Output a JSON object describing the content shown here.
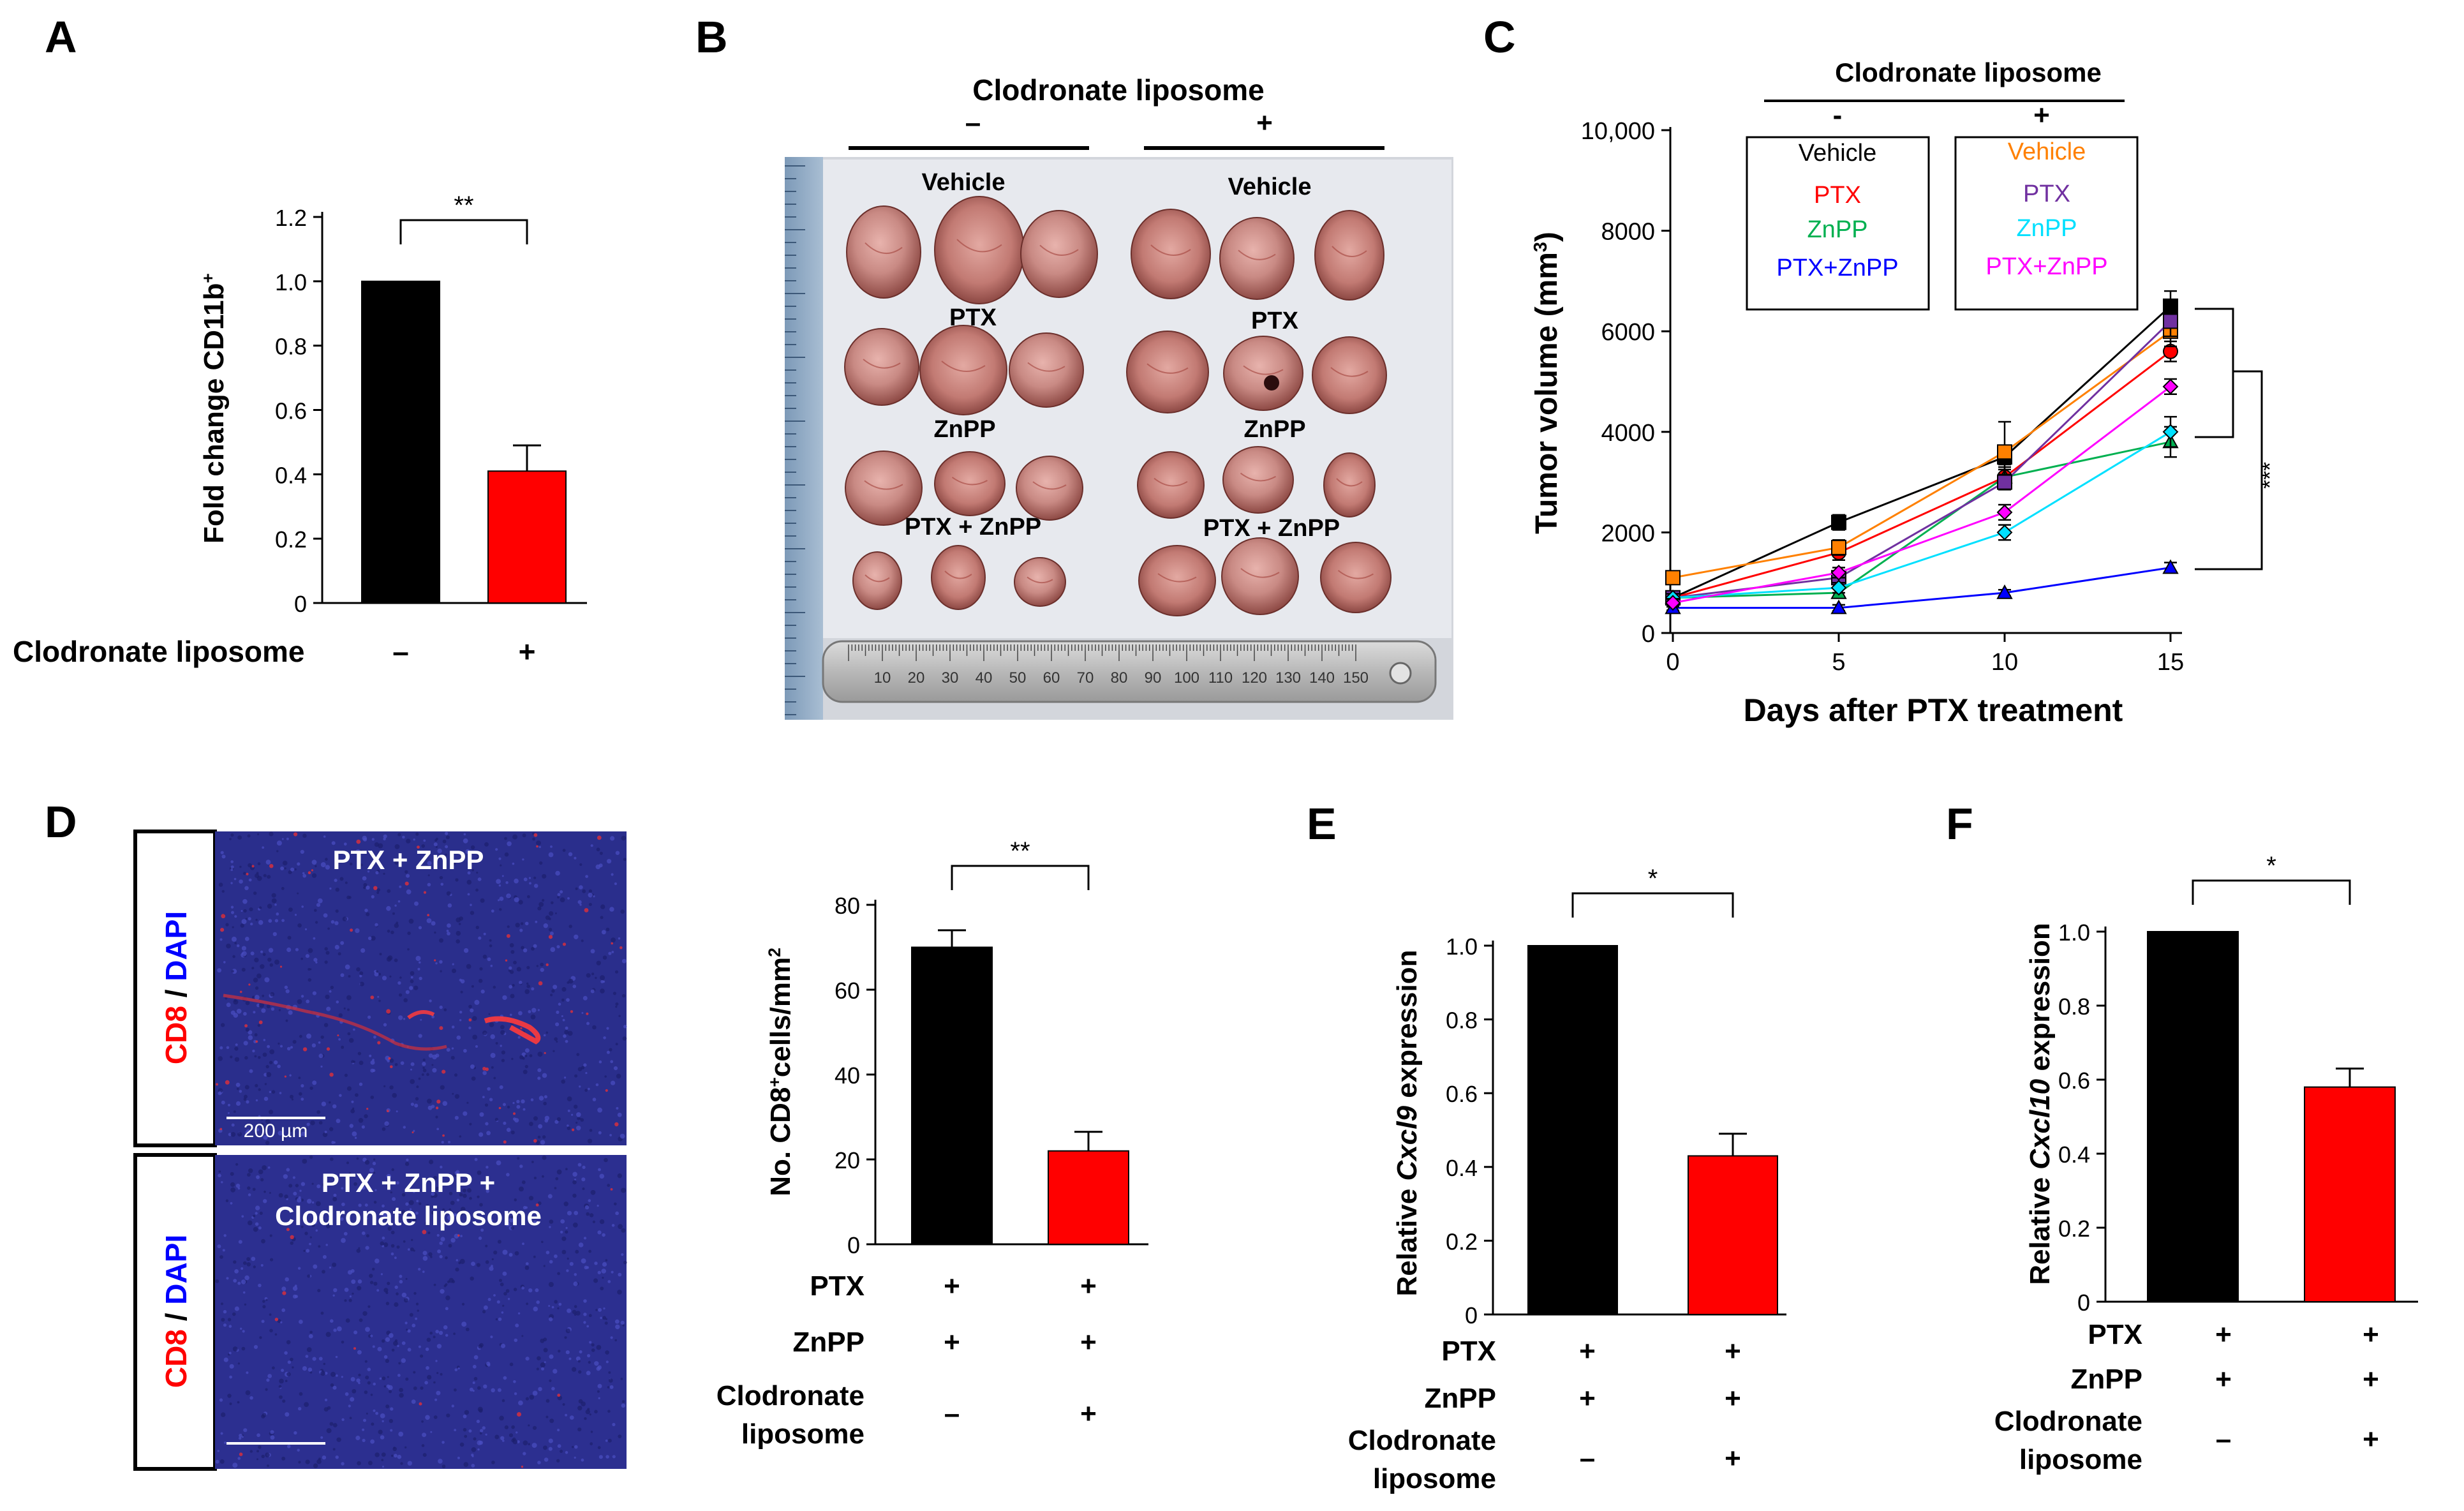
{
  "panels": {
    "A": {
      "letter": "A",
      "significance": "**",
      "condition_label": "Clodronate liposome",
      "condition_values": [
        "–",
        "+"
      ],
      "chart_data": {
        "type": "bar",
        "ylabel": "Fold change  CD11b",
        "ylabel_sup": "+",
        "ylim": [
          0,
          1.2
        ],
        "yticks": [
          "0",
          "0.2",
          "0.4",
          "0.6",
          "0.8",
          "1.0",
          "1.2"
        ],
        "ytick_values": [
          0,
          0.2,
          0.4,
          0.6,
          0.8,
          1.0,
          1.2
        ],
        "values": [
          1.0,
          0.41
        ],
        "errors": [
          0,
          0.08
        ],
        "colors": [
          "#000000",
          "#ff0000"
        ]
      }
    },
    "B": {
      "letter": "B",
      "header": "Clodronate liposome",
      "header_minus": "–",
      "header_plus": "+",
      "left_labels": [
        "Vehicle",
        "PTX",
        "ZnPP",
        "PTX + ZnPP"
      ],
      "right_labels": [
        "Vehicle",
        "PTX",
        "ZnPP",
        "PTX + ZnPP"
      ],
      "ruler_numbers": [
        "10",
        "20",
        "30",
        "40",
        "50",
        "60",
        "70",
        "80",
        "90",
        "100",
        "110",
        "120",
        "130",
        "140",
        "150"
      ]
    },
    "C": {
      "letter": "C",
      "legend_header": "Clodronate liposome",
      "legend_minus": "-",
      "legend_plus": "+",
      "significance": "***",
      "chart_data": {
        "type": "line",
        "xlabel": "Days after PTX treatment",
        "ylabel": "Tumor volume (mm",
        "ylabel_sup": "3",
        "ylabel_end": ")",
        "x": [
          0,
          5,
          10,
          15
        ],
        "xticks": [
          "0",
          "5",
          "10",
          "15"
        ],
        "ylim": [
          0,
          10000
        ],
        "yticks": [
          "0",
          "2000",
          "4000",
          "6000",
          "8000",
          "10,000"
        ],
        "ytick_values": [
          0,
          2000,
          4000,
          6000,
          8000,
          10000
        ],
        "series": [
          {
            "name": "Vehicle",
            "group": "-",
            "color": "#000000",
            "marker": "square",
            "values": [
              700,
              2200,
              3500,
              6500
            ],
            "errors": [
              100,
              150,
              150,
              300
            ]
          },
          {
            "name": "PTX",
            "group": "-",
            "color": "#ff0000",
            "marker": "circle",
            "values": [
              700,
              1600,
              3100,
              5600
            ],
            "errors": [
              100,
              150,
              200,
              200
            ]
          },
          {
            "name": "ZnPP",
            "group": "-",
            "color": "#00b050",
            "marker": "triangle",
            "values": [
              700,
              800,
              3100,
              3800
            ],
            "errors": [
              80,
              100,
              150,
              300
            ]
          },
          {
            "name": "PTX+ZnPP",
            "group": "-",
            "color": "#0000ff",
            "marker": "triangle",
            "values": [
              500,
              500,
              800,
              1300
            ],
            "errors": [
              50,
              60,
              60,
              100
            ]
          },
          {
            "name": "Vehicle",
            "group": "+",
            "color": "#ff8000",
            "marker": "square",
            "values": [
              1100,
              1700,
              3600,
              6000
            ],
            "errors": [
              100,
              150,
              600,
              300
            ]
          },
          {
            "name": "PTX",
            "group": "+",
            "color": "#7030a0",
            "marker": "square",
            "values": [
              700,
              1100,
              3000,
              6200
            ],
            "errors": [
              80,
              100,
              150,
              300
            ]
          },
          {
            "name": "ZnPP",
            "group": "+",
            "color": "#00e0ff",
            "marker": "diamond",
            "values": [
              700,
              900,
              2000,
              4000
            ],
            "errors": [
              80,
              100,
              150,
              300
            ]
          },
          {
            "name": "PTX+ZnPP",
            "group": "+",
            "color": "#ff00ff",
            "marker": "diamond",
            "values": [
              600,
              1200,
              2400,
              4900
            ],
            "errors": [
              80,
              100,
              150,
              150
            ]
          }
        ]
      }
    },
    "D": {
      "letter": "D",
      "image1_title": "PTX + ZnPP",
      "image2_title_line1": "PTX + ZnPP +",
      "image2_title_line2": "Clodronate liposome",
      "stain_cd8": "CD8",
      "stain_sep": " / ",
      "stain_dapi": "DAPI",
      "scale_bar": "200 µm",
      "significance": "**",
      "rows": [
        {
          "label": "PTX",
          "values": [
            "+",
            "+"
          ]
        },
        {
          "label": "ZnPP",
          "values": [
            "+",
            "+"
          ]
        },
        {
          "label": "Clodronate\nliposome",
          "line1": "Clodronate",
          "line2": "liposome",
          "values": [
            "–",
            "+"
          ]
        }
      ],
      "chart_data": {
        "type": "bar",
        "ylabel": "No. CD8",
        "ylabel_sup": "+",
        "ylabel_mid": "cells/mm",
        "ylabel_sup2": "2",
        "ylim": [
          0,
          80
        ],
        "yticks": [
          "0",
          "20",
          "40",
          "60",
          "80"
        ],
        "ytick_values": [
          0,
          20,
          40,
          60,
          80
        ],
        "values": [
          70,
          22
        ],
        "errors": [
          4,
          4.5
        ],
        "colors": [
          "#000000",
          "#ff0000"
        ]
      }
    },
    "E": {
      "letter": "E",
      "significance": "*",
      "rows": [
        {
          "label": "PTX",
          "values": [
            "+",
            "+"
          ]
        },
        {
          "label": "ZnPP",
          "values": [
            "+",
            "+"
          ]
        },
        {
          "label": "Clodronate liposome",
          "line1": "Clodronate",
          "line2": "liposome",
          "values": [
            "–",
            "+"
          ]
        }
      ],
      "chart_data": {
        "type": "bar",
        "ylabel_pre": "Relative ",
        "ylabel_italic": "Cxcl9",
        "ylabel_post": " expression",
        "ylim": [
          0,
          1.0
        ],
        "yticks": [
          "0",
          "0.2",
          "0.4",
          "0.6",
          "0.8",
          "1.0"
        ],
        "ytick_values": [
          0,
          0.2,
          0.4,
          0.6,
          0.8,
          1.0
        ],
        "values": [
          1.0,
          0.43
        ],
        "errors": [
          0,
          0.06
        ],
        "colors": [
          "#000000",
          "#ff0000"
        ]
      }
    },
    "F": {
      "letter": "F",
      "significance": "*",
      "rows": [
        {
          "label": "PTX",
          "values": [
            "+",
            "+"
          ]
        },
        {
          "label": "ZnPP",
          "values": [
            "+",
            "+"
          ]
        },
        {
          "label": "Clodronate liposome",
          "line1": "Clodronate",
          "line2": "liposome",
          "values": [
            "–",
            "+"
          ]
        }
      ],
      "chart_data": {
        "type": "bar",
        "ylabel_pre": "Relative ",
        "ylabel_italic": "Cxcl10",
        "ylabel_post": " expression",
        "ylim": [
          0,
          1.0
        ],
        "yticks": [
          "0",
          "0.2",
          "0.4",
          "0.6",
          "0.8",
          "1.0"
        ],
        "ytick_values": [
          0,
          0.2,
          0.4,
          0.6,
          0.8,
          1.0
        ],
        "values": [
          1.0,
          0.58
        ],
        "errors": [
          0,
          0.05
        ],
        "colors": [
          "#000000",
          "#ff0000"
        ]
      }
    }
  }
}
